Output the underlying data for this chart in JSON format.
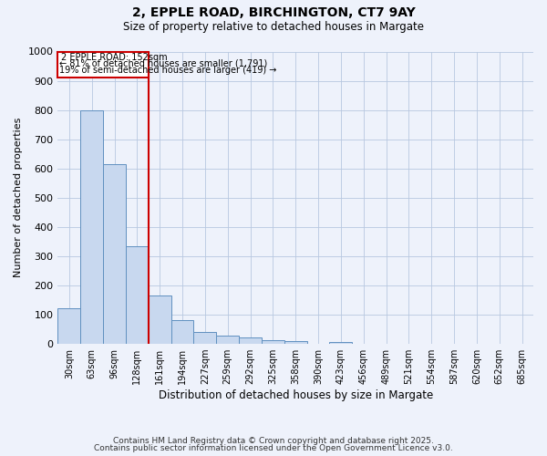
{
  "title": "2, EPPLE ROAD, BIRCHINGTON, CT7 9AY",
  "subtitle": "Size of property relative to detached houses in Margate",
  "xlabel": "Distribution of detached houses by size in Margate",
  "ylabel": "Number of detached properties",
  "bar_color": "#c8d8ef",
  "bar_edge_color": "#6090c0",
  "background_color": "#eef2fb",
  "grid_color": "#b8c8e0",
  "categories": [
    "30sqm",
    "63sqm",
    "96sqm",
    "128sqm",
    "161sqm",
    "194sqm",
    "227sqm",
    "259sqm",
    "292sqm",
    "325sqm",
    "358sqm",
    "390sqm",
    "423sqm",
    "456sqm",
    "489sqm",
    "521sqm",
    "554sqm",
    "587sqm",
    "620sqm",
    "652sqm",
    "685sqm"
  ],
  "values": [
    122,
    800,
    616,
    335,
    165,
    82,
    40,
    27,
    22,
    14,
    10,
    0,
    8,
    0,
    0,
    0,
    0,
    0,
    0,
    0,
    0
  ],
  "ylim": [
    0,
    1000
  ],
  "yticks": [
    0,
    100,
    200,
    300,
    400,
    500,
    600,
    700,
    800,
    900,
    1000
  ],
  "property_line_color": "#cc0000",
  "box_text_line1": "2 EPPLE ROAD: 152sqm",
  "box_text_line2": "← 81% of detached houses are smaller (1,791)",
  "box_text_line3": "19% of semi-detached houses are larger (419) →",
  "box_color": "#cc0000",
  "footnote1": "Contains HM Land Registry data © Crown copyright and database right 2025.",
  "footnote2": "Contains public sector information licensed under the Open Government Licence v3.0."
}
